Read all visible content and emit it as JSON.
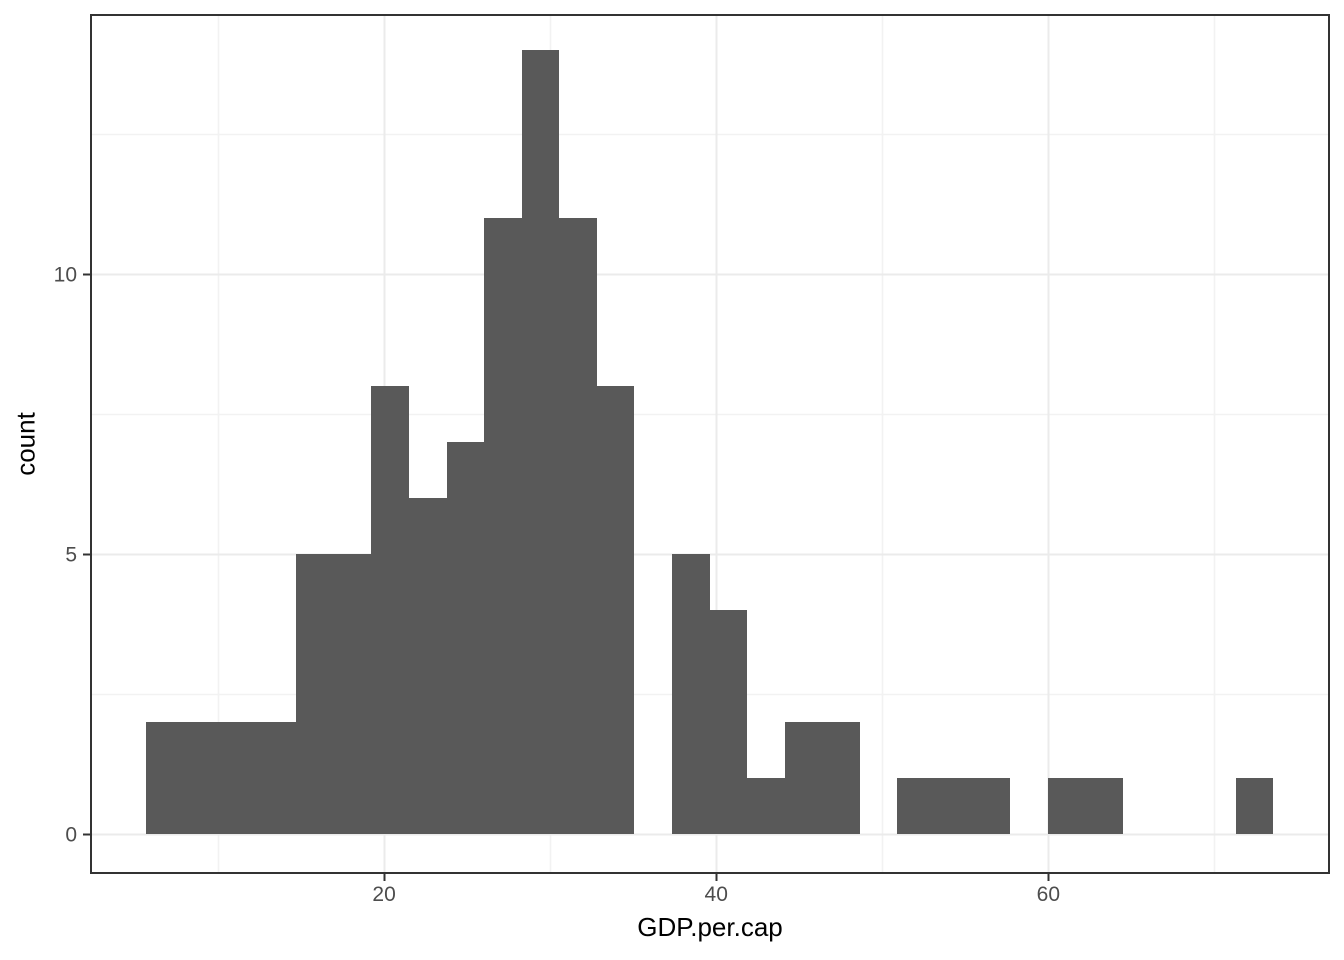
{
  "chart_data": {
    "type": "bar",
    "subtype": "histogram",
    "title": "",
    "xlabel": "GDP.per.cap",
    "ylabel": "count",
    "bin_start": 5.66,
    "bin_width": 2.2625,
    "counts": [
      2,
      2,
      2,
      2,
      5,
      5,
      8,
      6,
      7,
      11,
      14,
      11,
      8,
      0,
      5,
      4,
      1,
      2,
      2,
      0,
      1,
      1,
      1,
      0,
      1,
      1,
      0,
      0,
      0,
      1
    ],
    "total_observations": 103,
    "xlim": [
      2.35,
      76.9
    ],
    "ylim": [
      -0.7,
      14.63
    ],
    "x_major_ticks": [
      20,
      40,
      60
    ],
    "x_tick_labels": [
      "20",
      "40",
      "60"
    ],
    "x_minor_gridlines": [
      10,
      30,
      50,
      70
    ],
    "y_major_ticks": [
      0,
      5,
      10
    ],
    "y_tick_labels": [
      "0",
      "5",
      "10"
    ],
    "y_minor_gridlines": [
      2.5,
      7.5,
      12.5
    ],
    "grid": "on",
    "legend": "none",
    "colors": {
      "bar_fill": "#595959",
      "panel_border": "#333333",
      "grid_major": "#ebebeb",
      "grid_minor": "#f2f2f2",
      "tick_mark": "#333333",
      "tick_label": "#4d4d4d",
      "axis_title": "#000000",
      "background": "#ffffff"
    }
  }
}
